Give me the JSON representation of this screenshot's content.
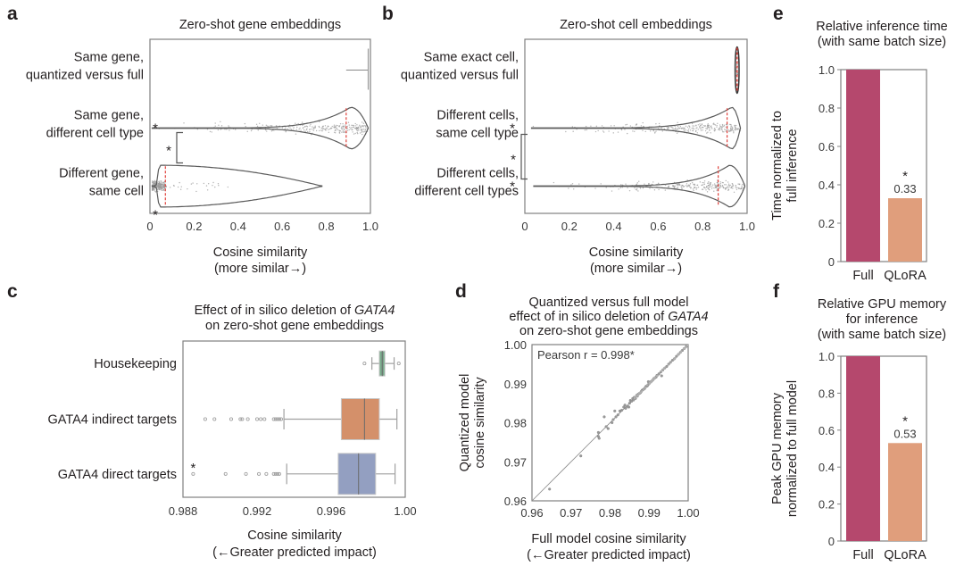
{
  "chart_data": [
    {
      "panel": "a",
      "type": "violin",
      "title": "Zero-shot gene embeddings",
      "xlabel": "Cosine similarity",
      "xlabel_sub": "(more similar→)",
      "xlim": [
        0,
        1.0
      ],
      "xticks": [
        "0",
        "0.2",
        "0.4",
        "0.6",
        "0.8",
        "1.0"
      ],
      "xtick_values": [
        0,
        0.2,
        0.4,
        0.6,
        0.8,
        1.0
      ],
      "categories": [
        {
          "label_lines": [
            "Same gene,",
            "quantized versus full"
          ],
          "min": 0.89,
          "max": 1.0,
          "median": 0.99,
          "mode": 0.99,
          "kind": "tick",
          "star": false
        },
        {
          "label_lines": [
            "Same gene,",
            "different cell type"
          ],
          "min": 0.01,
          "max": 0.99,
          "median": 0.89,
          "mode": 0.91,
          "kind": "violin",
          "star": true
        },
        {
          "label_lines": [
            "Different gene,",
            "same cell"
          ],
          "min": 0.01,
          "max": 0.78,
          "median": 0.07,
          "mode": 0.04,
          "kind": "violin",
          "star": true
        }
      ],
      "bracket": {
        "between": [
          1,
          2
        ],
        "label": "*"
      }
    },
    {
      "panel": "b",
      "type": "violin",
      "title": "Zero-shot cell embeddings",
      "xlabel": "Cosine similarity",
      "xlabel_sub": "(more similar→)",
      "xlim": [
        0,
        1.0
      ],
      "xticks": [
        "0",
        "0.2",
        "0.4",
        "0.6",
        "0.8",
        "1.0"
      ],
      "xtick_values": [
        0,
        0.2,
        0.4,
        0.6,
        0.8,
        1.0
      ],
      "categories": [
        {
          "label_lines": [
            "Same exact cell,",
            "quantized versus full"
          ],
          "min": 0.95,
          "max": 0.96,
          "median": 0.955,
          "mode": 0.955,
          "kind": "thin",
          "star": false
        },
        {
          "label_lines": [
            "Different cells,",
            "same cell type"
          ],
          "min": 0.03,
          "max": 0.97,
          "median": 0.91,
          "mode": 0.93,
          "kind": "violin",
          "star": true
        },
        {
          "label_lines": [
            "Different cells,",
            "different cell types"
          ],
          "min": 0.04,
          "max": 0.99,
          "median": 0.87,
          "mode": 0.92,
          "kind": "violin",
          "star": true
        }
      ],
      "bracket": {
        "between": [
          1,
          2
        ],
        "label": "*"
      }
    },
    {
      "panel": "c",
      "type": "box",
      "title_lines": [
        "Effect of in silico deletion of GATA4",
        "on zero-shot gene embeddings"
      ],
      "title_italic_word": "GATA4",
      "xlabel": "Cosine similarity",
      "xlabel_sub": "(←Greater predicted impact)",
      "xlim": [
        0.988,
        1.0
      ],
      "xticks": [
        "0.988",
        "0.992",
        "0.996",
        "1.00"
      ],
      "xtick_values": [
        0.988,
        0.992,
        0.996,
        1.0
      ],
      "categories": [
        {
          "label": "Housekeeping",
          "color": "#7aab8c",
          "whisker_low": 0.9982,
          "q1": 0.9986,
          "median": 0.99876,
          "q3": 0.9989,
          "whisker_high": 0.9994,
          "outliers": [
            0.9978,
            0.99965
          ],
          "star": false
        },
        {
          "label": "GATA4 indirect targets",
          "color": "#d4906a",
          "whisker_low": 0.99345,
          "q1": 0.99655,
          "median": 0.9978,
          "q3": 0.9986,
          "whisker_high": 0.99955,
          "outliers": [
            0.9892,
            0.9897,
            0.9906,
            0.9911,
            0.9912,
            0.9915,
            0.992,
            0.9922,
            0.9924,
            0.9929,
            0.993,
            0.9931,
            0.9932,
            0.9933
          ],
          "star": false
        },
        {
          "label": "GATA4 direct targets",
          "color": "#939fc1",
          "whisker_low": 0.9936,
          "q1": 0.99638,
          "median": 0.99748,
          "q3": 0.9984,
          "whisker_high": 0.99945,
          "outliers": [
            0.98855,
            0.9903,
            0.9914,
            0.9921,
            0.9925,
            0.9929,
            0.993,
            0.9931,
            0.9932
          ],
          "star": true
        }
      ]
    },
    {
      "panel": "d",
      "type": "scatter",
      "title_lines": [
        "Quantized versus full model",
        "effect of in silico deletion of GATA4",
        "on zero-shot gene embeddings"
      ],
      "title_italic_word": "GATA4",
      "xlabel": "Full model cosine similarity",
      "xlabel_sub": "(←Greater predicted impact)",
      "ylabel_lines": [
        "Quantized model",
        "cosine similarity"
      ],
      "xlim": [
        0.96,
        1.0
      ],
      "ylim": [
        0.96,
        1.0
      ],
      "xticks": [
        "0.96",
        "0.97",
        "0.98",
        "0.99",
        "1.00"
      ],
      "yticks": [
        "0.96",
        "0.97",
        "0.98",
        "0.99",
        "1.00"
      ],
      "tick_values": [
        0.96,
        0.97,
        0.98,
        0.99,
        1.0
      ],
      "annotation": "Pearson r = 0.998*",
      "identity_line": true,
      "points": [
        [
          0.9645,
          0.963
        ],
        [
          0.9725,
          0.9715
        ],
        [
          0.977,
          0.9775
        ],
        [
          0.977,
          0.9765
        ],
        [
          0.9772,
          0.976
        ],
        [
          0.9785,
          0.9815
        ],
        [
          0.979,
          0.979
        ],
        [
          0.9795,
          0.9785
        ],
        [
          0.9805,
          0.98
        ],
        [
          0.9808,
          0.9808
        ],
        [
          0.9812,
          0.983
        ],
        [
          0.9815,
          0.9815
        ],
        [
          0.982,
          0.982
        ],
        [
          0.9825,
          0.983
        ],
        [
          0.983,
          0.9832
        ],
        [
          0.9835,
          0.984
        ],
        [
          0.9838,
          0.9845
        ],
        [
          0.984,
          0.9837
        ],
        [
          0.9845,
          0.9842
        ],
        [
          0.9848,
          0.984
        ],
        [
          0.985,
          0.985
        ],
        [
          0.9852,
          0.9857
        ],
        [
          0.9855,
          0.9855
        ],
        [
          0.9858,
          0.9862
        ],
        [
          0.986,
          0.9858
        ],
        [
          0.9862,
          0.9865
        ],
        [
          0.9865,
          0.9862
        ],
        [
          0.9868,
          0.987
        ],
        [
          0.987,
          0.9868
        ],
        [
          0.9872,
          0.9873
        ],
        [
          0.9875,
          0.9875
        ],
        [
          0.9878,
          0.9877
        ],
        [
          0.988,
          0.988
        ],
        [
          0.9882,
          0.9883
        ],
        [
          0.9885,
          0.9885
        ],
        [
          0.9888,
          0.9887
        ],
        [
          0.989,
          0.989
        ],
        [
          0.9892,
          0.9893
        ],
        [
          0.9895,
          0.9894
        ],
        [
          0.9897,
          0.9897
        ],
        [
          0.9898,
          0.9905
        ],
        [
          0.99,
          0.99
        ],
        [
          0.9903,
          0.9904
        ],
        [
          0.9905,
          0.9905
        ],
        [
          0.9908,
          0.9908
        ],
        [
          0.991,
          0.991
        ],
        [
          0.9912,
          0.9913
        ],
        [
          0.9915,
          0.9915
        ],
        [
          0.9918,
          0.9917
        ],
        [
          0.992,
          0.9921
        ],
        [
          0.9925,
          0.9925
        ],
        [
          0.993,
          0.993
        ],
        [
          0.9932,
          0.992
        ],
        [
          0.9935,
          0.9935
        ],
        [
          0.994,
          0.994
        ],
        [
          0.9945,
          0.9944
        ],
        [
          0.995,
          0.995
        ],
        [
          0.9955,
          0.9955
        ],
        [
          0.996,
          0.996
        ],
        [
          0.9965,
          0.9964
        ],
        [
          0.997,
          0.997
        ],
        [
          0.9975,
          0.9975
        ],
        [
          0.998,
          0.998
        ],
        [
          0.9985,
          0.9985
        ],
        [
          0.999,
          0.999
        ],
        [
          0.9995,
          0.9995
        ],
        [
          0.9998,
          0.9998
        ]
      ]
    },
    {
      "panel": "e",
      "type": "bar",
      "title_lines": [
        "Relative inference time",
        "(with same batch size)"
      ],
      "ylabel_lines": [
        "Time normalized to",
        "full inference"
      ],
      "categories": [
        "Full",
        "QLoRA"
      ],
      "values": [
        1.0,
        0.33
      ],
      "colors": [
        "#b5486d",
        "#e09e7c"
      ],
      "bar_labels": [
        "",
        "0.33"
      ],
      "bar_stars": [
        false,
        true
      ],
      "ylim": [
        0,
        1.0
      ],
      "yticks": [
        "0",
        "0.2",
        "0.4",
        "0.6",
        "0.8",
        "1.0"
      ],
      "ytick_values": [
        0,
        0.2,
        0.4,
        0.6,
        0.8,
        1.0
      ]
    },
    {
      "panel": "f",
      "type": "bar",
      "title_lines": [
        "Relative GPU memory",
        "for inference",
        "(with same batch size)"
      ],
      "ylabel_lines": [
        "Peak GPU memory",
        "normalized to full model"
      ],
      "categories": [
        "Full",
        "QLoRA"
      ],
      "values": [
        1.0,
        0.53
      ],
      "colors": [
        "#b5486d",
        "#e09e7c"
      ],
      "bar_labels": [
        "",
        "0.53"
      ],
      "bar_stars": [
        false,
        true
      ],
      "ylim": [
        0,
        1.0
      ],
      "yticks": [
        "0",
        "0.2",
        "0.4",
        "0.6",
        "0.8",
        "1.0"
      ],
      "ytick_values": [
        0,
        0.2,
        0.4,
        0.6,
        0.8,
        1.0
      ]
    }
  ],
  "panel_labels": [
    "a",
    "b",
    "c",
    "d",
    "e",
    "f"
  ],
  "colors": {
    "median_line": "#e0403a",
    "violin_outline": "#5a5a5a",
    "points": "#9a9a9a",
    "frame": "#808080"
  },
  "significance_mark": "*"
}
